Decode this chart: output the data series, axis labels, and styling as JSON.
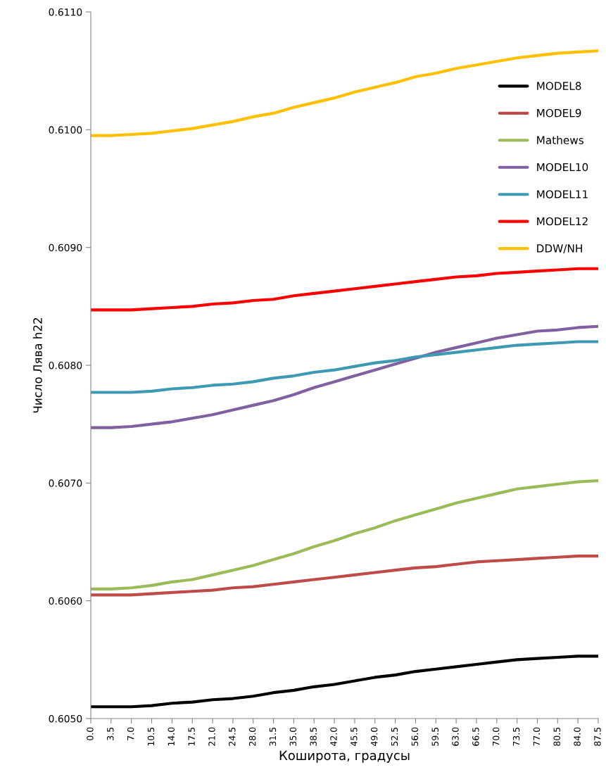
{
  "chart_data": {
    "type": "line",
    "xlabel": "Коширота, градусы",
    "ylabel": "Число Лява h22",
    "categories": [
      "0.0",
      "3.5",
      "7.0",
      "10.5",
      "14.0",
      "17.5",
      "21.0",
      "24.5",
      "28.0",
      "31.5",
      "35.0",
      "38.5",
      "42.0",
      "45.5",
      "49.0",
      "52.5",
      "56.0",
      "59.5",
      "63.0",
      "66.5",
      "70.0",
      "73.5",
      "77.0",
      "80.5",
      "84.0",
      "87.5"
    ],
    "ylim": [
      0.605,
      0.611
    ],
    "yticks": [
      {
        "value": 0.605,
        "label": "0.6050"
      },
      {
        "value": 0.606,
        "label": "0.6060"
      },
      {
        "value": 0.607,
        "label": "0.6070"
      },
      {
        "value": 0.608,
        "label": "0.6080"
      },
      {
        "value": 0.609,
        "label": "0.6090"
      },
      {
        "value": 0.61,
        "label": "0.6100"
      },
      {
        "value": 0.611,
        "label": "0.6110"
      }
    ],
    "grid": false,
    "legend": "top right",
    "marker": "none",
    "line_style": "solid",
    "series": [
      {
        "name": "MODEL8",
        "color": "#000000",
        "values": [
          0.6051,
          0.6051,
          0.6051,
          0.60511,
          0.60513,
          0.60514,
          0.60516,
          0.60517,
          0.60519,
          0.60522,
          0.60524,
          0.60527,
          0.60529,
          0.60532,
          0.60535,
          0.60537,
          0.6054,
          0.60542,
          0.60544,
          0.60546,
          0.60548,
          0.6055,
          0.60551,
          0.60552,
          0.60553,
          0.60553
        ]
      },
      {
        "name": "MODEL9",
        "color": "#be4b48",
        "values": [
          0.60605,
          0.60605,
          0.60605,
          0.60606,
          0.60607,
          0.60608,
          0.60609,
          0.60611,
          0.60612,
          0.60614,
          0.60616,
          0.60618,
          0.6062,
          0.60622,
          0.60624,
          0.60626,
          0.60628,
          0.60629,
          0.60631,
          0.60633,
          0.60634,
          0.60635,
          0.60636,
          0.60637,
          0.60638,
          0.60638
        ]
      },
      {
        "name": "Mathews",
        "color": "#9bbb59",
        "values": [
          0.6061,
          0.6061,
          0.60611,
          0.60613,
          0.60616,
          0.60618,
          0.60622,
          0.60626,
          0.6063,
          0.60635,
          0.6064,
          0.60646,
          0.60651,
          0.60657,
          0.60662,
          0.60668,
          0.60673,
          0.60678,
          0.60683,
          0.60687,
          0.60691,
          0.60695,
          0.60697,
          0.60699,
          0.60701,
          0.60702
        ]
      },
      {
        "name": "MODEL10",
        "color": "#7f60a0",
        "values": [
          0.60747,
          0.60747,
          0.60748,
          0.6075,
          0.60752,
          0.60755,
          0.60758,
          0.60762,
          0.60766,
          0.6077,
          0.60775,
          0.60781,
          0.60786,
          0.60791,
          0.60796,
          0.60801,
          0.60806,
          0.60811,
          0.60815,
          0.60819,
          0.60823,
          0.60826,
          0.60829,
          0.6083,
          0.60832,
          0.60833
        ]
      },
      {
        "name": "MODEL11",
        "color": "#3d9ab2",
        "values": [
          0.60777,
          0.60777,
          0.60777,
          0.60778,
          0.6078,
          0.60781,
          0.60783,
          0.60784,
          0.60786,
          0.60789,
          0.60791,
          0.60794,
          0.60796,
          0.60799,
          0.60802,
          0.60804,
          0.60807,
          0.60809,
          0.60811,
          0.60813,
          0.60815,
          0.60817,
          0.60818,
          0.60819,
          0.6082,
          0.6082
        ]
      },
      {
        "name": "MODEL12",
        "color": "#ff0000",
        "values": [
          0.60847,
          0.60847,
          0.60847,
          0.60848,
          0.60849,
          0.6085,
          0.60852,
          0.60853,
          0.60855,
          0.60856,
          0.60859,
          0.60861,
          0.60863,
          0.60865,
          0.60867,
          0.60869,
          0.60871,
          0.60873,
          0.60875,
          0.60876,
          0.60878,
          0.60879,
          0.6088,
          0.60881,
          0.60882,
          0.60882
        ]
      },
      {
        "name": "DDW/NH",
        "color": "#ffc000",
        "values": [
          0.60995,
          0.60995,
          0.60996,
          0.60997,
          0.60999,
          0.61001,
          0.61004,
          0.61007,
          0.61011,
          0.61014,
          0.61019,
          0.61023,
          0.61027,
          0.61032,
          0.61036,
          0.6104,
          0.61045,
          0.61048,
          0.61052,
          0.61055,
          0.61058,
          0.61061,
          0.61063,
          0.61065,
          0.61066,
          0.61067
        ]
      }
    ]
  }
}
